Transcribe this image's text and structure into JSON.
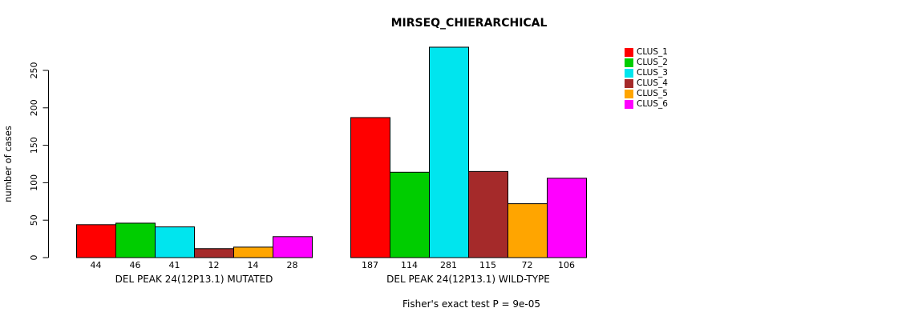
{
  "page": {
    "title": "MIRSEQ_CHIERARCHICAL",
    "footer": "Fisher's exact test P = 9e-05"
  },
  "chart_data": {
    "type": "bar",
    "title": "MIRSEQ_CHIERARCHICAL",
    "ylabel": "number of cases",
    "xlabel": "",
    "yticks": [
      0,
      50,
      100,
      150,
      200,
      250
    ],
    "ylim": [
      0,
      285
    ],
    "grid": false,
    "legend_position": "right",
    "legend": [
      {
        "label": "CLUS_1",
        "color": "#FF0000"
      },
      {
        "label": "CLUS_2",
        "color": "#00CD00"
      },
      {
        "label": "CLUS_3",
        "color": "#00E5EE"
      },
      {
        "label": "CLUS_4",
        "color": "#A52A2A"
      },
      {
        "label": "CLUS_5",
        "color": "#FFA500"
      },
      {
        "label": "CLUS_6",
        "color": "#FF00FF"
      }
    ],
    "groups": [
      {
        "label": "DEL PEAK 24(12P13.1) MUTATED",
        "values": [
          44,
          46,
          41,
          12,
          14,
          28
        ]
      },
      {
        "label": "DEL PEAK 24(12P13.1) WILD-TYPE",
        "values": [
          187,
          114,
          281,
          115,
          72,
          106
        ]
      }
    ],
    "annotation": "Fisher's exact test P = 9e-05"
  }
}
